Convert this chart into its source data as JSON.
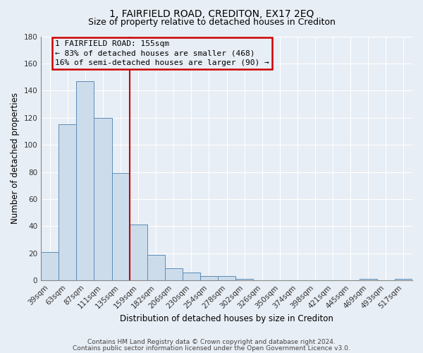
{
  "title": "1, FAIRFIELD ROAD, CREDITON, EX17 2EQ",
  "subtitle": "Size of property relative to detached houses in Crediton",
  "xlabel": "Distribution of detached houses by size in Crediton",
  "ylabel": "Number of detached properties",
  "bar_labels": [
    "39sqm",
    "63sqm",
    "87sqm",
    "111sqm",
    "135sqm",
    "159sqm",
    "182sqm",
    "206sqm",
    "230sqm",
    "254sqm",
    "278sqm",
    "302sqm",
    "326sqm",
    "350sqm",
    "374sqm",
    "398sqm",
    "421sqm",
    "445sqm",
    "469sqm",
    "493sqm",
    "517sqm"
  ],
  "bar_heights": [
    21,
    115,
    147,
    120,
    79,
    41,
    19,
    9,
    6,
    3,
    3,
    1,
    0,
    0,
    0,
    0,
    0,
    0,
    1,
    0,
    1
  ],
  "bar_color": "#cddceb",
  "bar_edge_color": "#5b8db8",
  "ylim": [
    0,
    180
  ],
  "yticks": [
    0,
    20,
    40,
    60,
    80,
    100,
    120,
    140,
    160,
    180
  ],
  "vline_color": "#cc0000",
  "vline_position": 4.5,
  "annotation_title": "1 FAIRFIELD ROAD: 155sqm",
  "annotation_line1": "← 83% of detached houses are smaller (468)",
  "annotation_line2": "16% of semi-detached houses are larger (90) →",
  "annotation_box_color": "#cc0000",
  "footer_line1": "Contains HM Land Registry data © Crown copyright and database right 2024.",
  "footer_line2": "Contains public sector information licensed under the Open Government Licence v3.0.",
  "background_color": "#e8eef5",
  "grid_color": "#d0d8e4",
  "title_fontsize": 10,
  "subtitle_fontsize": 9,
  "axis_label_fontsize": 8.5,
  "tick_fontsize": 7.5,
  "annotation_fontsize": 8,
  "footer_fontsize": 6.5
}
